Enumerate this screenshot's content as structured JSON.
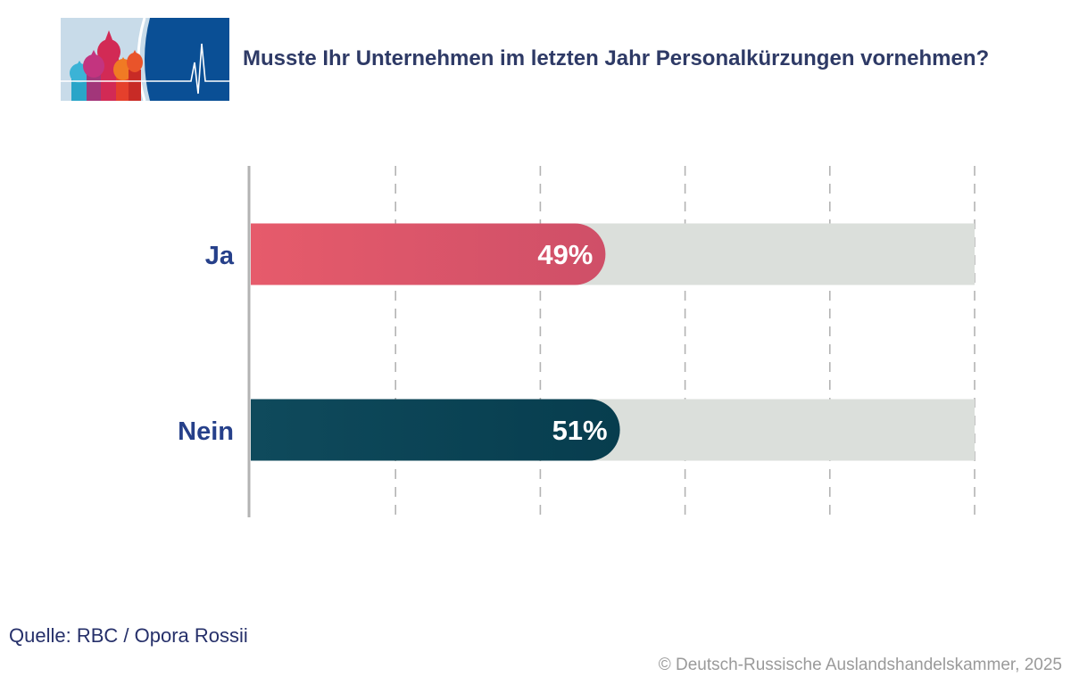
{
  "header": {
    "title": "Musste Ihr Unternehmen im letzten Jahr Personalkürzungen vornehmen?",
    "logo_icon": "cathedral-heartbeat-logo-icon"
  },
  "chart_data": {
    "type": "bar",
    "orientation": "horizontal",
    "categories": [
      "Ja",
      "Nein"
    ],
    "values": [
      49,
      51
    ],
    "value_labels": [
      "49%",
      "51%"
    ],
    "xlim": [
      0,
      100
    ],
    "gridlines": "dashed vertical",
    "colors": {
      "Ja": [
        "#e65b6b",
        "#cf4f68"
      ],
      "Nein": [
        "#0f4a5c",
        "#073d4e"
      ],
      "track": "#dbdfdb",
      "category_label": "#26408a",
      "grid": "#b3b3b3",
      "axis": "#b3b3b3"
    }
  },
  "footer": {
    "source": "Quelle: RBC / Opora Rossii",
    "copyright": "© Deutsch-Russische Auslandshandelskammer, 2025"
  }
}
